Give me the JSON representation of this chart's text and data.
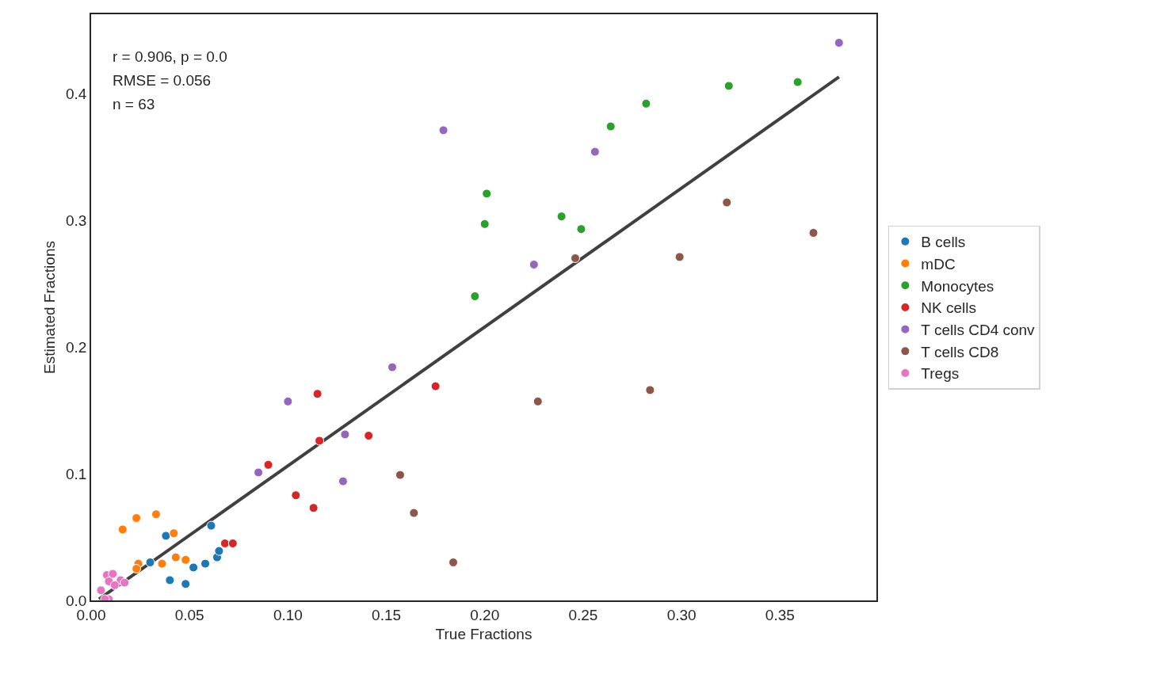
{
  "chart_data": {
    "type": "scatter",
    "xlabel": "True Fractions",
    "ylabel": "Estimated Fractions",
    "annotations": [
      "r = 0.906, p = 0.0",
      "RMSE = 0.056",
      "n = 63"
    ],
    "xlim": [
      0,
      0.399
    ],
    "ylim": [
      0,
      0.4625
    ],
    "xticks": [
      {
        "value": 0,
        "label": "0.00"
      },
      {
        "value": 0.05,
        "label": "0.05"
      },
      {
        "value": 0.1,
        "label": "0.10"
      },
      {
        "value": 0.15,
        "label": "0.15"
      },
      {
        "value": 0.2,
        "label": "0.20"
      },
      {
        "value": 0.25,
        "label": "0.25"
      },
      {
        "value": 0.3,
        "label": "0.30"
      },
      {
        "value": 0.35,
        "label": "0.35"
      }
    ],
    "yticks": [
      {
        "value": 0,
        "label": "0.0"
      },
      {
        "value": 0.1,
        "label": "0.1"
      },
      {
        "value": 0.2,
        "label": "0.2"
      },
      {
        "value": 0.3,
        "label": "0.3"
      },
      {
        "value": 0.4,
        "label": "0.4"
      }
    ],
    "legend": "right",
    "series": [
      {
        "type": "line",
        "color": "#404040",
        "x": [
          0.004,
          0.38
        ],
        "values": [
          0.001,
          0.413
        ]
      },
      {
        "name": "B cells",
        "color": "#1f77b4",
        "x": [
          0.038,
          0.061,
          0.03,
          0.04,
          0.048,
          0.052,
          0.058,
          0.064,
          0.065
        ],
        "values": [
          0.051,
          0.059,
          0.03,
          0.016,
          0.013,
          0.026,
          0.029,
          0.034,
          0.039
        ]
      },
      {
        "name": "mDC",
        "color": "#ff7f0e",
        "x": [
          0.016,
          0.023,
          0.033,
          0.042,
          0.024,
          0.023,
          0.036,
          0.043,
          0.048
        ],
        "values": [
          0.056,
          0.065,
          0.068,
          0.053,
          0.029,
          0.025,
          0.029,
          0.034,
          0.032
        ]
      },
      {
        "name": "Monocytes",
        "color": "#2ca02c",
        "x": [
          0.201,
          0.2,
          0.195,
          0.239,
          0.249,
          0.264,
          0.282,
          0.324,
          0.359
        ],
        "values": [
          0.321,
          0.297,
          0.24,
          0.303,
          0.293,
          0.374,
          0.392,
          0.406,
          0.409
        ]
      },
      {
        "name": "NK cells",
        "color": "#d62728",
        "x": [
          0.115,
          0.175,
          0.09,
          0.116,
          0.141,
          0.104,
          0.113,
          0.068,
          0.072
        ],
        "values": [
          0.163,
          0.169,
          0.107,
          0.126,
          0.13,
          0.083,
          0.073,
          0.045,
          0.045
        ]
      },
      {
        "name": "T cells CD4 conv",
        "color": "#9467bd",
        "x": [
          0.179,
          0.256,
          0.225,
          0.38,
          0.1,
          0.129,
          0.085,
          0.128,
          0.153
        ],
        "values": [
          0.371,
          0.354,
          0.265,
          0.44,
          0.157,
          0.131,
          0.101,
          0.094,
          0.184
        ]
      },
      {
        "name": "T cells CD8",
        "color": "#8c564b",
        "x": [
          0.246,
          0.299,
          0.323,
          0.367,
          0.284,
          0.227,
          0.157,
          0.164,
          0.184
        ],
        "values": [
          0.27,
          0.271,
          0.314,
          0.29,
          0.166,
          0.157,
          0.099,
          0.069,
          0.03
        ]
      },
      {
        "name": "Tregs",
        "color": "#e377c2",
        "x": [
          0.005,
          0.008,
          0.011,
          0.009,
          0.015,
          0.017,
          0.009,
          0.007,
          0.012
        ],
        "values": [
          0.008,
          0.02,
          0.021,
          0.015,
          0.016,
          0.014,
          0.001,
          0.001,
          0.012
        ]
      }
    ]
  }
}
